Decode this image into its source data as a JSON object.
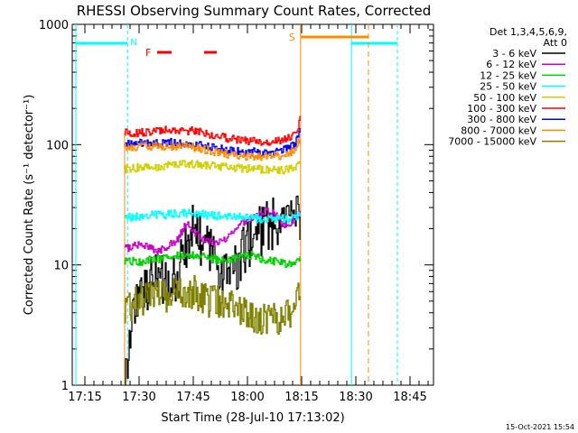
{
  "chart_data": {
    "type": "line",
    "title": "RHESSI Observing Summary Count Rates, Corrected",
    "xlabel": "Start Time (28-Jul-10 17:13:02)",
    "ylabel": "Corrected Count Rate (s⁻¹ detector⁻¹)",
    "y_scale": "log",
    "ylim": [
      1,
      1000
    ],
    "xlim_minutes": [
      -1.5,
      98.5
    ],
    "xticks": [
      {
        "label": "17:15",
        "minute": 2
      },
      {
        "label": "17:30",
        "minute": 17
      },
      {
        "label": "17:45",
        "minute": 32
      },
      {
        "label": "18:00",
        "minute": 47
      },
      {
        "label": "18:15",
        "minute": 62
      },
      {
        "label": "18:30",
        "minute": 77
      },
      {
        "label": "18:45",
        "minute": 92
      }
    ],
    "yticks": [
      {
        "label": "1",
        "value": 1
      },
      {
        "label": "10",
        "value": 10
      },
      {
        "label": "100",
        "value": 100
      },
      {
        "label": "1000",
        "value": 1000
      }
    ],
    "legend_header": [
      "Det 1,3,4,5,6,9,",
      "Att 0"
    ],
    "legend_position": "right",
    "series": [
      {
        "name": "3 - 6 keV",
        "color": "#000000",
        "x": [
          13,
          14,
          15,
          16,
          18,
          20,
          22,
          24,
          26,
          27,
          28,
          29,
          30,
          31,
          32,
          33,
          34,
          36,
          38,
          40,
          42,
          44,
          46,
          48,
          50,
          52,
          54,
          56,
          58,
          60,
          61.5
        ],
        "y": [
          1,
          2,
          4,
          5,
          6,
          7,
          8,
          7,
          7,
          8,
          9,
          11,
          15,
          19,
          21,
          19,
          16,
          13,
          11,
          9,
          8,
          10,
          13,
          17,
          19,
          21,
          22,
          24,
          23,
          24,
          26
        ]
      },
      {
        "name": "6 - 12 keV",
        "color": "#c800c8",
        "x": [
          13,
          15,
          18,
          20,
          22,
          24,
          26,
          28,
          29,
          30,
          31,
          32,
          34,
          36,
          38,
          40,
          42,
          44,
          46,
          48,
          50,
          52,
          54,
          56,
          58,
          60,
          61.5
        ],
        "y": [
          14,
          14,
          15,
          14,
          13,
          14,
          15,
          17,
          20,
          22,
          21,
          19,
          17,
          16,
          15,
          16,
          18,
          21,
          23,
          25,
          27,
          28,
          27,
          23,
          21,
          25,
          27
        ]
      },
      {
        "name": "12 - 25 keV",
        "color": "#00d000",
        "x": [
          13,
          16,
          20,
          24,
          28,
          32,
          36,
          40,
          44,
          48,
          52,
          56,
          60,
          61.5
        ],
        "y": [
          11,
          10.5,
          11,
          11.5,
          12,
          12,
          11.5,
          11,
          11.5,
          12,
          11,
          10.5,
          10,
          12
        ]
      },
      {
        "name": "25 - 50 keV",
        "color": "#00ffff",
        "x": [
          13,
          16,
          20,
          24,
          28,
          32,
          36,
          40,
          44,
          48,
          52,
          56,
          60,
          61.5
        ],
        "y": [
          25,
          25,
          26,
          26,
          27,
          27,
          26,
          25.5,
          25,
          24.5,
          24,
          24,
          24.5,
          27
        ]
      },
      {
        "name": "50 - 100 keV",
        "color": "#d0d000",
        "x": [
          13,
          16,
          20,
          24,
          28,
          32,
          36,
          40,
          44,
          48,
          52,
          56,
          58,
          60,
          61.5
        ],
        "y": [
          63,
          64,
          65,
          67,
          68,
          69,
          68,
          66,
          64,
          63,
          62,
          61,
          62,
          64,
          72
        ]
      },
      {
        "name": "100 - 300 keV",
        "color": "#ff0000",
        "x": [
          13,
          16,
          20,
          24,
          28,
          32,
          36,
          40,
          44,
          48,
          52,
          56,
          58,
          60,
          61,
          61.5
        ],
        "y": [
          125,
          126,
          128,
          131,
          133,
          130,
          122,
          115,
          110,
          107,
          106,
          107,
          112,
          125,
          145,
          165
        ]
      },
      {
        "name": "300 - 800 keV",
        "color": "#0000ff",
        "x": [
          13,
          16,
          20,
          24,
          28,
          32,
          36,
          40,
          44,
          48,
          52,
          56,
          58,
          60,
          61,
          61.5
        ],
        "y": [
          101,
          102,
          103,
          104,
          104,
          102,
          96,
          91,
          88,
          87,
          87,
          88,
          92,
          102,
          115,
          130
        ]
      },
      {
        "name": "800 - 7000 keV",
        "color": "#ff8c00",
        "x": [
          13,
          16,
          20,
          24,
          28,
          32,
          36,
          40,
          44,
          48,
          52,
          56,
          58,
          60,
          61,
          61.5
        ],
        "y": [
          95,
          96,
          97,
          98,
          97,
          95,
          90,
          85,
          82,
          80,
          79,
          80,
          83,
          92,
          105,
          118
        ]
      },
      {
        "name": "7000 - 15000 keV",
        "color": "#808000",
        "x": [
          13,
          14,
          16,
          18,
          20,
          24,
          28,
          32,
          36,
          40,
          44,
          48,
          52,
          56,
          60,
          61.5
        ],
        "y": [
          4,
          4.5,
          5,
          5,
          5.5,
          5.5,
          6,
          6,
          5,
          5,
          4.5,
          3.5,
          3.5,
          3.5,
          4,
          7
        ]
      }
    ],
    "flags": {
      "markers": [
        {
          "label": "N",
          "color": "#00ffff"
        },
        {
          "label": "F",
          "color": "#ff0000"
        },
        {
          "label": "S",
          "color": "#ff8c00"
        }
      ],
      "night_intervals": [
        {
          "start": -0.5,
          "end": 13.8
        },
        {
          "start": 75.8,
          "end": 88.5
        }
      ],
      "saa_intervals": [
        {
          "start": 61.7,
          "end": 80.5
        }
      ],
      "flare_intervals": [
        {
          "start": 22,
          "end": 26
        },
        {
          "start": 35,
          "end": 38.5
        }
      ]
    }
  },
  "footer": {
    "timestamp": "15-Oct-2021 15:54"
  },
  "colors": {
    "axis": "#000000",
    "background": "#ffffff",
    "night": "#00ffff",
    "flare": "#ff0000",
    "saa": "#ff8c00"
  }
}
